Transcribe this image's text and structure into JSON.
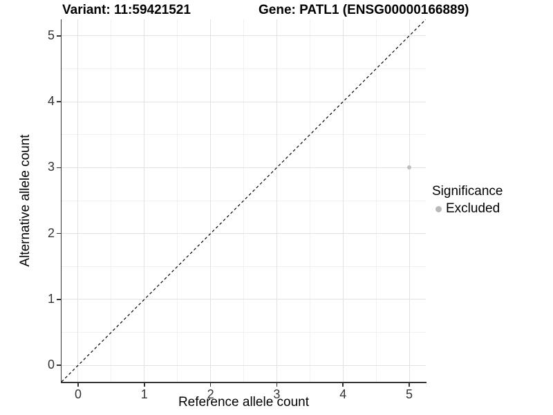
{
  "chart_data": {
    "type": "scatter",
    "title_left": "Variant: 11:59421521",
    "title_right": "Gene: PATL1 (ENSG00000166889)",
    "xlabel": "Reference allele count",
    "ylabel": "Alternative allele count",
    "xlim": [
      -0.25,
      5.25
    ],
    "ylim": [
      -0.25,
      5.25
    ],
    "xticks": [
      0,
      1,
      2,
      3,
      4,
      5
    ],
    "yticks": [
      0,
      1,
      2,
      3,
      4,
      5
    ],
    "x_minor": [
      0.5,
      1.5,
      2.5,
      3.5,
      4.5
    ],
    "y_minor": [
      0.5,
      1.5,
      2.5,
      3.5,
      4.5
    ],
    "grid": "major+minor",
    "identity_line": {
      "slope": 1,
      "intercept": 0,
      "style": "dashed",
      "color": "#000000"
    },
    "series": [
      {
        "name": "Excluded",
        "color": "#bebebe",
        "point_radius": 3,
        "points": [
          {
            "x": 5,
            "y": 3
          }
        ]
      }
    ],
    "legend": {
      "title": "Significance",
      "position": "right-middle",
      "items": [
        {
          "label": "Excluded",
          "color": "#b8b8b8"
        }
      ]
    },
    "colors": {
      "background": "#ffffff",
      "grid_major": "#e2e2e2",
      "grid_minor": "#f0f0f0",
      "axis_line": "#333333",
      "tick_text": "#333333"
    }
  }
}
